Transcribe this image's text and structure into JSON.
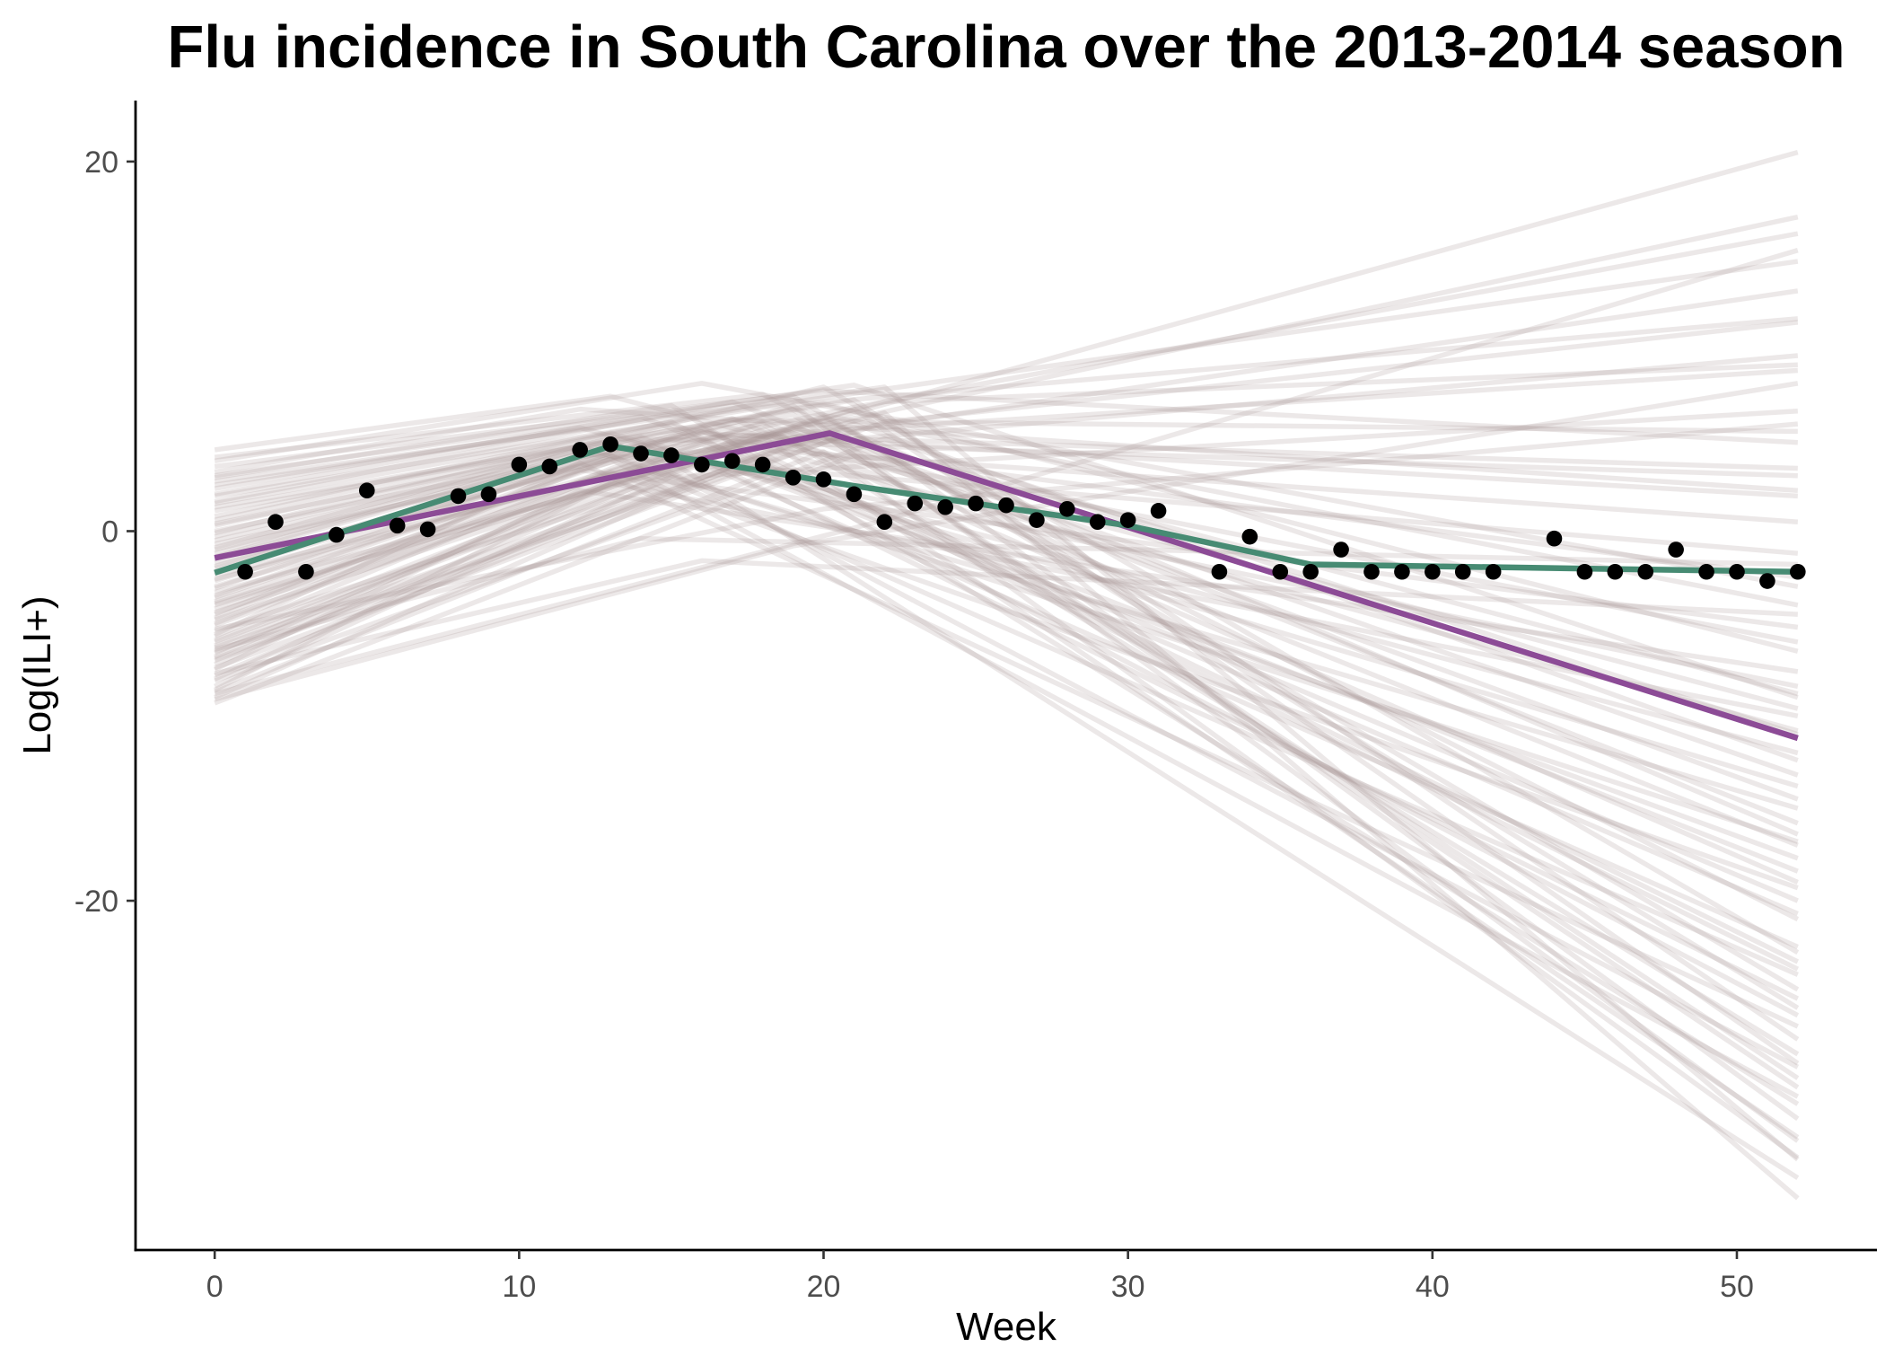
{
  "chart_data": {
    "type": "line",
    "title": "Flu incidence in South Carolina over the 2013-2014 season",
    "xlabel": "Week",
    "ylabel": "Log(ILI+)",
    "xlim": [
      -2.6,
      54.6
    ],
    "ylim": [
      -38.9,
      23.3
    ],
    "xticks": [
      0,
      10,
      20,
      30,
      40,
      50
    ],
    "yticks": [
      -20,
      0,
      20
    ],
    "grid": false,
    "points": {
      "color": "#000000",
      "x": [
        1,
        2,
        3,
        4,
        5,
        6,
        7,
        8,
        9,
        10,
        11,
        12,
        13,
        14,
        15,
        16,
        17,
        18,
        19,
        20,
        21,
        22,
        23,
        24,
        25,
        26,
        27,
        28,
        29,
        30,
        31,
        33,
        34,
        35,
        36,
        37,
        38,
        39,
        40,
        41,
        42,
        44,
        45,
        46,
        47,
        48,
        49,
        50,
        51,
        52
      ],
      "y": [
        -2.2,
        0.5,
        -2.2,
        -0.2,
        2.2,
        0.3,
        0.1,
        1.9,
        2.0,
        3.6,
        3.5,
        4.4,
        4.7,
        4.2,
        4.1,
        3.6,
        3.8,
        3.6,
        2.9,
        2.8,
        2.0,
        0.5,
        1.5,
        1.3,
        1.5,
        1.4,
        0.6,
        1.2,
        0.5,
        0.6,
        1.1,
        -2.2,
        -0.3,
        -2.2,
        -2.2,
        -1.0,
        -2.2,
        -2.2,
        -2.2,
        -2.2,
        -2.2,
        -0.4,
        -2.2,
        -2.2,
        -2.2,
        -1.0,
        -2.2,
        -2.2,
        -2.7,
        -2.2
      ]
    },
    "series": [
      {
        "color": "#8c4b96",
        "x": [
          0,
          20.2,
          52
        ],
        "y": [
          -1.45,
          5.3,
          -11.2
        ]
      },
      {
        "color": "#478b73",
        "x": [
          0,
          13,
          21,
          30,
          36,
          52
        ],
        "y": [
          -2.25,
          4.6,
          2.45,
          0.3,
          -1.8,
          -2.2
        ]
      }
    ],
    "samples": {
      "color": "#a89696",
      "lines": [
        {
          "x": [
            0,
            13,
            52
          ],
          "y": [
            4.4,
            7.3,
            -9.6
          ]
        },
        {
          "x": [
            0,
            16,
            52
          ],
          "y": [
            3.8,
            8.0,
            -3.0
          ]
        },
        {
          "x": [
            0,
            12,
            52
          ],
          "y": [
            3.2,
            6.6,
            2.2
          ]
        },
        {
          "x": [
            0,
            22,
            52
          ],
          "y": [
            2.7,
            7.8,
            -34.0
          ]
        },
        {
          "x": [
            0,
            14,
            52
          ],
          "y": [
            2.3,
            6.2,
            -18.4
          ]
        },
        {
          "x": [
            0,
            18,
            52
          ],
          "y": [
            1.9,
            6.7,
            11.5
          ]
        },
        {
          "x": [
            0,
            15,
            52
          ],
          "y": [
            1.5,
            5.9,
            -26.2
          ]
        },
        {
          "x": [
            0,
            20,
            52
          ],
          "y": [
            1.1,
            6.9,
            -6.5
          ]
        },
        {
          "x": [
            0,
            13,
            52
          ],
          "y": [
            0.8,
            5.3,
            -13.8
          ]
        },
        {
          "x": [
            0,
            17,
            52
          ],
          "y": [
            0.4,
            6.0,
            5.4
          ]
        },
        {
          "x": [
            0,
            19,
            52
          ],
          "y": [
            0.0,
            6.3,
            -30.1
          ]
        },
        {
          "x": [
            0,
            14,
            52
          ],
          "y": [
            -0.3,
            5.1,
            -22.5
          ]
        },
        {
          "x": [
            0,
            21,
            52
          ],
          "y": [
            -0.7,
            6.7,
            16.1
          ]
        },
        {
          "x": [
            0,
            16,
            52
          ],
          "y": [
            -1.0,
            5.4,
            -10.8
          ]
        },
        {
          "x": [
            0,
            12,
            52
          ],
          "y": [
            -1.4,
            4.2,
            -1.2
          ]
        },
        {
          "x": [
            0,
            18,
            52
          ],
          "y": [
            -1.7,
            5.8,
            -28.3
          ]
        },
        {
          "x": [
            0,
            15,
            52
          ],
          "y": [
            -2.0,
            4.9,
            8.7
          ]
        },
        {
          "x": [
            0,
            20,
            52
          ],
          "y": [
            -2.4,
            6.0,
            -16.4
          ]
        },
        {
          "x": [
            0,
            13,
            52
          ],
          "y": [
            -2.7,
            4.1,
            -24.0
          ]
        },
        {
          "x": [
            0,
            17,
            52
          ],
          "y": [
            -3.0,
            5.2,
            3.4
          ]
        },
        {
          "x": [
            0,
            22,
            52
          ],
          "y": [
            -3.3,
            6.4,
            -36.1
          ]
        },
        {
          "x": [
            0,
            14,
            52
          ],
          "y": [
            -3.6,
            4.3,
            -8.4
          ]
        },
        {
          "x": [
            0,
            19,
            52
          ],
          "y": [
            -3.9,
            5.5,
            20.5
          ]
        },
        {
          "x": [
            0,
            16,
            52
          ],
          "y": [
            -4.2,
            4.7,
            -20.7
          ]
        },
        {
          "x": [
            0,
            12,
            52
          ],
          "y": [
            -4.5,
            3.3,
            -5.2
          ]
        },
        {
          "x": [
            0,
            18,
            52
          ],
          "y": [
            -4.8,
            5.1,
            -32.8
          ]
        },
        {
          "x": [
            0,
            15,
            52
          ],
          "y": [
            -5.1,
            4.1,
            13.0
          ]
        },
        {
          "x": [
            0,
            21,
            52
          ],
          "y": [
            -5.4,
            5.8,
            -12.4
          ]
        },
        {
          "x": [
            0,
            13,
            52
          ],
          "y": [
            -5.7,
            3.2,
            -19.3
          ]
        },
        {
          "x": [
            0,
            17,
            52
          ],
          "y": [
            -6.0,
            4.5,
            0.5
          ]
        },
        {
          "x": [
            0,
            20,
            52
          ],
          "y": [
            -6.3,
            5.2,
            -29.6
          ]
        },
        {
          "x": [
            0,
            14,
            52
          ],
          "y": [
            -6.6,
            3.4,
            -15.0
          ]
        },
        {
          "x": [
            0,
            19,
            52
          ],
          "y": [
            -6.9,
            4.7,
            9.5
          ]
        },
        {
          "x": [
            0,
            16,
            52
          ],
          "y": [
            -7.2,
            3.9,
            -25.3
          ]
        },
        {
          "x": [
            0,
            12,
            52
          ],
          "y": [
            -7.5,
            2.2,
            -7.6
          ]
        },
        {
          "x": [
            0,
            18,
            52
          ],
          "y": [
            -7.8,
            4.2,
            -23.3
          ]
        },
        {
          "x": [
            0,
            22,
            52
          ],
          "y": [
            -8.1,
            5.0,
            -11.0
          ]
        },
        {
          "x": [
            0,
            15,
            52
          ],
          "y": [
            -8.4,
            2.9,
            6.5
          ]
        },
        {
          "x": [
            0,
            20,
            52
          ],
          "y": [
            -8.7,
            4.3,
            -33.9
          ]
        },
        {
          "x": [
            0,
            17,
            52
          ],
          "y": [
            -9.0,
            3.4,
            -17.7
          ]
        },
        {
          "x": [
            0,
            21,
            52
          ],
          "y": [
            -9.3,
            4.1,
            -2.5
          ]
        },
        {
          "x": [
            0,
            18,
            52
          ],
          "y": [
            4.0,
            7.4,
            -21.0
          ]
        },
        {
          "x": [
            0,
            20,
            52
          ],
          "y": [
            3.5,
            7.6,
            4.8
          ]
        },
        {
          "x": [
            0,
            15,
            52
          ],
          "y": [
            2.9,
            6.8,
            -31.0
          ]
        },
        {
          "x": [
            0,
            12,
            52
          ],
          "y": [
            2.0,
            5.6,
            -12.0
          ]
        },
        {
          "x": [
            0,
            21,
            52
          ],
          "y": [
            1.3,
            7.1,
            -27.5
          ]
        },
        {
          "x": [
            0,
            16,
            52
          ],
          "y": [
            0.6,
            6.3,
            14.6
          ]
        },
        {
          "x": [
            0,
            19,
            52
          ],
          "y": [
            -0.5,
            6.6,
            -4.0
          ]
        },
        {
          "x": [
            0,
            13,
            52
          ],
          "y": [
            -1.2,
            4.9,
            -29.0
          ]
        },
        {
          "x": [
            0,
            17,
            52
          ],
          "y": [
            -1.9,
            6.1,
            -19.0
          ]
        },
        {
          "x": [
            0,
            22,
            52
          ],
          "y": [
            -2.6,
            7.0,
            9.0
          ]
        },
        {
          "x": [
            0,
            14,
            52
          ],
          "y": [
            -3.1,
            4.8,
            -35.0
          ]
        },
        {
          "x": [
            0,
            18,
            52
          ],
          "y": [
            -3.8,
            5.9,
            -14.5
          ]
        },
        {
          "x": [
            0,
            20,
            52
          ],
          "y": [
            -4.4,
            6.2,
            -24.8
          ]
        },
        {
          "x": [
            0,
            16,
            52
          ],
          "y": [
            -5.0,
            5.3,
            1.9
          ]
        },
        {
          "x": [
            0,
            12,
            52
          ],
          "y": [
            -5.6,
            3.7,
            -26.8
          ]
        },
        {
          "x": [
            0,
            19,
            52
          ],
          "y": [
            -6.2,
            5.6,
            -8.8
          ]
        },
        {
          "x": [
            0,
            15,
            52
          ],
          "y": [
            -6.8,
            4.0,
            17.0
          ]
        },
        {
          "x": [
            0,
            21,
            52
          ],
          "y": [
            -7.4,
            5.4,
            -31.8
          ]
        },
        {
          "x": [
            0,
            17,
            52
          ],
          "y": [
            -8.0,
            4.4,
            -20.0
          ]
        },
        {
          "x": [
            0,
            13,
            52
          ],
          "y": [
            -8.6,
            2.6,
            -10.0
          ]
        },
        {
          "x": [
            0,
            20,
            52
          ],
          "y": [
            -0.1,
            7.8,
            -22.8
          ]
        },
        {
          "x": [
            0,
            17,
            52
          ],
          "y": [
            1.6,
            7.0,
            -15.8
          ]
        },
        {
          "x": [
            0,
            19,
            52
          ],
          "y": [
            -2.2,
            6.8,
            -33.0
          ]
        },
        {
          "x": [
            0,
            21,
            52
          ],
          "y": [
            -4.0,
            6.6,
            -28.8
          ]
        },
        {
          "x": [
            0,
            18,
            52
          ],
          "y": [
            -5.9,
            5.5,
            -17.0
          ]
        },
        {
          "x": [
            0,
            15,
            52
          ],
          "y": [
            0.3,
            5.7,
            -6.0
          ]
        },
        {
          "x": [
            0,
            14,
            52
          ],
          "y": [
            -1.5,
            5.0,
            3.0
          ]
        },
        {
          "x": [
            0,
            16,
            52
          ],
          "y": [
            -3.5,
            5.6,
            -23.7
          ]
        },
        {
          "x": [
            0,
            20,
            52
          ],
          "y": [
            -7.0,
            5.1,
            -13.2
          ]
        },
        {
          "x": [
            0,
            19,
            52
          ],
          "y": [
            2.5,
            7.3,
            -25.8
          ]
        },
        {
          "x": [
            0,
            22,
            52
          ],
          "y": [
            -6.5,
            5.9,
            11.3
          ]
        },
        {
          "x": [
            0,
            12,
            52
          ],
          "y": [
            -0.9,
            4.6,
            -16.8
          ]
        },
        {
          "x": [
            0,
            13,
            52
          ],
          "y": [
            -4.7,
            3.9,
            -30.6
          ]
        },
        {
          "x": [
            0,
            21,
            52
          ],
          "y": [
            3.0,
            7.9,
            -9.0
          ]
        },
        {
          "x": [
            0,
            19,
            52
          ],
          "y": [
            -9.1,
            -0.8,
            8.0
          ]
        },
        {
          "x": [
            0,
            16,
            52
          ],
          "y": [
            -7.7,
            -1.6,
            -4.5
          ]
        },
        {
          "x": [
            0,
            22,
            52
          ],
          "y": [
            -8.8,
            0.6,
            15.2
          ]
        },
        {
          "x": [
            0,
            14,
            52
          ],
          "y": [
            -6.4,
            -0.4,
            -1.8
          ]
        },
        {
          "x": [
            0,
            20,
            52
          ],
          "y": [
            -5.3,
            1.2,
            5.8
          ]
        }
      ]
    }
  }
}
